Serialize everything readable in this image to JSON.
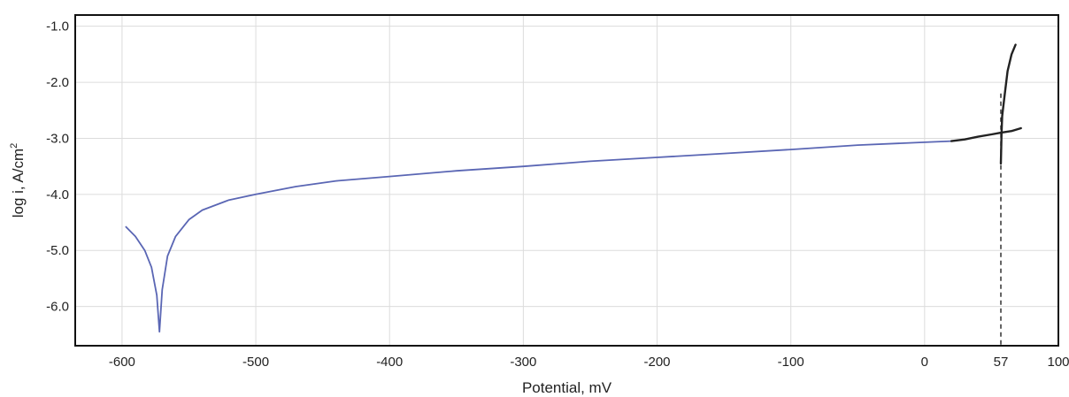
{
  "chart_data": {
    "type": "line",
    "title": "",
    "xlabel": "Potential, mV",
    "ylabel": "log i, A/cm",
    "ylabel_superscript": "2",
    "xlim": [
      -635,
      100
    ],
    "ylim": [
      -6.7,
      -0.8
    ],
    "x_ticks": [
      -600,
      -500,
      -400,
      -300,
      -200,
      -100,
      0,
      57,
      100
    ],
    "x_tick_labels": [
      "-600",
      "-500",
      "-400",
      "-300",
      "-200",
      "-100",
      "0",
      "57",
      "100"
    ],
    "y_ticks": [
      -1.0,
      -2.0,
      -3.0,
      -4.0,
      -5.0,
      -6.0
    ],
    "y_tick_labels": [
      "-1.0",
      "-2.0",
      "-3.0",
      "-4.0",
      "-5.0",
      "-6.0"
    ],
    "grid": true,
    "colors": {
      "blue_curve": "#5a66b4",
      "black_curve": "#222222",
      "grid": "#dcdcdc"
    },
    "series": [
      {
        "color": "#5a66b4",
        "points": [
          [
            -597,
            -4.58
          ],
          [
            -590,
            -4.75
          ],
          [
            -583,
            -5.0
          ],
          [
            -578,
            -5.3
          ],
          [
            -574,
            -5.8
          ],
          [
            -572,
            -6.45
          ],
          [
            -570,
            -5.7
          ],
          [
            -566,
            -5.1
          ],
          [
            -560,
            -4.75
          ],
          [
            -550,
            -4.45
          ],
          [
            -540,
            -4.28
          ],
          [
            -520,
            -4.1
          ],
          [
            -500,
            -4.0
          ],
          [
            -470,
            -3.86
          ],
          [
            -440,
            -3.76
          ],
          [
            -400,
            -3.68
          ],
          [
            -350,
            -3.58
          ],
          [
            -300,
            -3.5
          ],
          [
            -250,
            -3.41
          ],
          [
            -200,
            -3.34
          ],
          [
            -150,
            -3.27
          ],
          [
            -100,
            -3.2
          ],
          [
            -50,
            -3.12
          ],
          [
            0,
            -3.07
          ],
          [
            20,
            -3.05
          ]
        ]
      },
      {
        "color": "#222222",
        "points": [
          [
            20,
            -3.05
          ],
          [
            30,
            -3.02
          ],
          [
            40,
            -2.97
          ],
          [
            50,
            -2.93
          ],
          [
            57,
            -2.9
          ],
          [
            65,
            -2.87
          ],
          [
            72,
            -2.82
          ]
        ]
      },
      {
        "color": "#222222",
        "points": [
          [
            57,
            -3.45
          ],
          [
            57.5,
            -2.9
          ],
          [
            58,
            -2.6
          ],
          [
            60,
            -2.2
          ],
          [
            62,
            -1.8
          ],
          [
            65,
            -1.5
          ],
          [
            68,
            -1.33
          ]
        ]
      }
    ],
    "vertical_marker": {
      "x": 57,
      "y_from": -2.2,
      "y_to": -6.7,
      "style": "dashed"
    }
  }
}
